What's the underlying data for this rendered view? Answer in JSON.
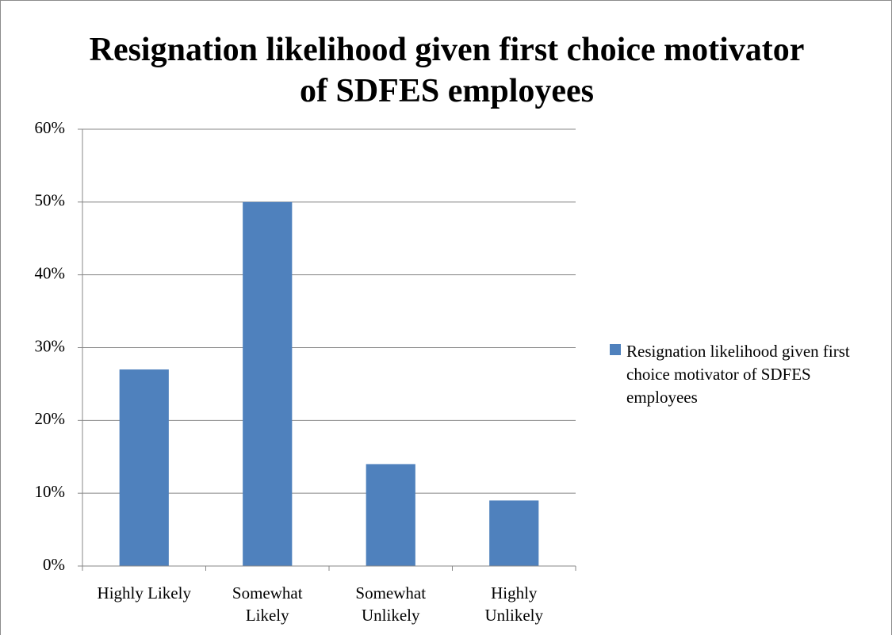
{
  "chart_data": {
    "type": "bar",
    "title": "Resignation likelihood given first choice motivator of SDFES employees",
    "categories": [
      "Highly Likely",
      "Somewhat Likely",
      "Somewhat Unlikely",
      "Highly Unlikely"
    ],
    "series": [
      {
        "name": "Resignation likelihood given first choice motivator of SDFES employees",
        "color": "#4f81bd",
        "values": [
          27,
          50,
          14,
          9
        ]
      }
    ],
    "ylim": [
      0,
      60
    ],
    "yticks": [
      {
        "value": 0,
        "label": "0%"
      },
      {
        "value": 10,
        "label": "10%"
      },
      {
        "value": 20,
        "label": "20%"
      },
      {
        "value": 30,
        "label": "30%"
      },
      {
        "value": 40,
        "label": "40%"
      },
      {
        "value": 50,
        "label": "50%"
      },
      {
        "value": 60,
        "label": "60%"
      }
    ],
    "grid": true,
    "legend": "right"
  }
}
